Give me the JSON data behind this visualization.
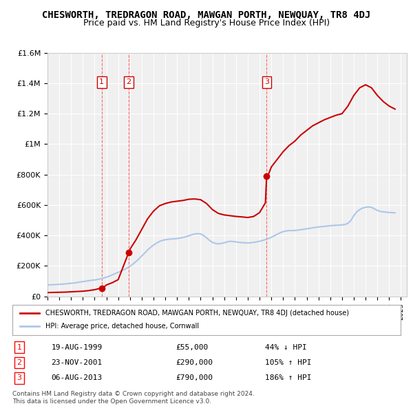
{
  "title": "CHESWORTH, TREDRAGON ROAD, MAWGAN PORTH, NEWQUAY, TR8 4DJ",
  "subtitle": "Price paid vs. HM Land Registry's House Price Index (HPI)",
  "title_fontsize": 10,
  "subtitle_fontsize": 9,
  "ylim": [
    0,
    1600000
  ],
  "yticks": [
    0,
    200000,
    400000,
    600000,
    800000,
    1000000,
    1200000,
    1400000,
    1600000
  ],
  "ytick_labels": [
    "£0",
    "£200K",
    "£400K",
    "£600K",
    "£800K",
    "£1M",
    "£1.2M",
    "£1.4M",
    "£1.6M"
  ],
  "xlim_start": 1995.0,
  "xlim_end": 2025.5,
  "background_color": "#ffffff",
  "plot_bg_color": "#f0f0f0",
  "grid_color": "#ffffff",
  "hpi_color": "#aec6e8",
  "price_color": "#cc0000",
  "sale_marker_color": "#cc0000",
  "sale_label_color": "#cc0000",
  "vline_color": "#ff6666",
  "legend_label_red": "CHESWORTH, TREDRAGON ROAD, MAWGAN PORTH, NEWQUAY, TR8 4DJ (detached house)",
  "legend_label_blue": "HPI: Average price, detached house, Cornwall",
  "footer_line1": "Contains HM Land Registry data © Crown copyright and database right 2024.",
  "footer_line2": "This data is licensed under the Open Government Licence v3.0.",
  "sales": [
    {
      "num": 1,
      "year": 1999.6,
      "price": 55000,
      "date": "19-AUG-1999",
      "price_str": "£55,000",
      "change": "44% ↓ HPI"
    },
    {
      "num": 2,
      "year": 2001.9,
      "price": 290000,
      "date": "23-NOV-2001",
      "price_str": "£290,000",
      "change": "105% ↑ HPI"
    },
    {
      "num": 3,
      "year": 2013.6,
      "price": 790000,
      "date": "06-AUG-2013",
      "price_str": "£790,000",
      "change": "186% ↑ HPI"
    }
  ],
  "hpi_years": [
    1995.0,
    1995.25,
    1995.5,
    1995.75,
    1996.0,
    1996.25,
    1996.5,
    1996.75,
    1997.0,
    1997.25,
    1997.5,
    1997.75,
    1998.0,
    1998.25,
    1998.5,
    1998.75,
    1999.0,
    1999.25,
    1999.5,
    1999.75,
    2000.0,
    2000.25,
    2000.5,
    2000.75,
    2001.0,
    2001.25,
    2001.5,
    2001.75,
    2002.0,
    2002.25,
    2002.5,
    2002.75,
    2003.0,
    2003.25,
    2003.5,
    2003.75,
    2004.0,
    2004.25,
    2004.5,
    2004.75,
    2005.0,
    2005.25,
    2005.5,
    2005.75,
    2006.0,
    2006.25,
    2006.5,
    2006.75,
    2007.0,
    2007.25,
    2007.5,
    2007.75,
    2008.0,
    2008.25,
    2008.5,
    2008.75,
    2009.0,
    2009.25,
    2009.5,
    2009.75,
    2010.0,
    2010.25,
    2010.5,
    2010.75,
    2011.0,
    2011.25,
    2011.5,
    2011.75,
    2012.0,
    2012.25,
    2012.5,
    2012.75,
    2013.0,
    2013.25,
    2013.5,
    2013.75,
    2014.0,
    2014.25,
    2014.5,
    2014.75,
    2015.0,
    2015.25,
    2015.5,
    2015.75,
    2016.0,
    2016.25,
    2016.5,
    2016.75,
    2017.0,
    2017.25,
    2017.5,
    2017.75,
    2018.0,
    2018.25,
    2018.5,
    2018.75,
    2019.0,
    2019.25,
    2019.5,
    2019.75,
    2020.0,
    2020.25,
    2020.5,
    2020.75,
    2021.0,
    2021.25,
    2021.5,
    2021.75,
    2022.0,
    2022.25,
    2022.5,
    2022.75,
    2023.0,
    2023.25,
    2023.5,
    2023.75,
    2024.0,
    2024.25,
    2024.5
  ],
  "hpi_values": [
    75000,
    76000,
    77000,
    78000,
    79000,
    80500,
    82000,
    84000,
    86000,
    88000,
    91000,
    94000,
    97000,
    100000,
    103000,
    106000,
    108000,
    111000,
    115000,
    120000,
    126000,
    133000,
    141000,
    150000,
    158000,
    167000,
    176000,
    186000,
    198000,
    212000,
    228000,
    246000,
    265000,
    285000,
    305000,
    322000,
    337000,
    350000,
    360000,
    368000,
    372000,
    375000,
    377000,
    378000,
    380000,
    383000,
    387000,
    392000,
    398000,
    405000,
    410000,
    412000,
    410000,
    400000,
    385000,
    368000,
    355000,
    348000,
    345000,
    348000,
    352000,
    358000,
    362000,
    360000,
    358000,
    355000,
    353000,
    352000,
    351000,
    352000,
    355000,
    358000,
    362000,
    367000,
    373000,
    380000,
    388000,
    398000,
    408000,
    418000,
    425000,
    430000,
    432000,
    432000,
    433000,
    435000,
    438000,
    441000,
    444000,
    447000,
    450000,
    453000,
    456000,
    458000,
    460000,
    462000,
    464000,
    466000,
    467000,
    468000,
    470000,
    472000,
    480000,
    498000,
    530000,
    555000,
    570000,
    580000,
    585000,
    588000,
    585000,
    575000,
    565000,
    558000,
    555000,
    553000,
    551000,
    550000,
    549000
  ],
  "red_years": [
    1995.0,
    1995.5,
    1996.0,
    1996.5,
    1997.0,
    1997.5,
    1998.0,
    1998.5,
    1999.0,
    1999.6,
    1999.7,
    2000.0,
    2000.5,
    2001.0,
    2001.9,
    2002.0,
    2002.5,
    2003.0,
    2003.5,
    2004.0,
    2004.5,
    2005.0,
    2005.5,
    2006.0,
    2006.5,
    2007.0,
    2007.5,
    2008.0,
    2008.5,
    2009.0,
    2009.5,
    2010.0,
    2010.5,
    2011.0,
    2011.5,
    2012.0,
    2012.5,
    2013.0,
    2013.5,
    2013.6,
    2013.7,
    2014.0,
    2014.5,
    2015.0,
    2015.5,
    2016.0,
    2016.5,
    2017.0,
    2017.5,
    2018.0,
    2018.5,
    2019.0,
    2019.5,
    2020.0,
    2020.5,
    2021.0,
    2021.5,
    2022.0,
    2022.5,
    2023.0,
    2023.5,
    2024.0,
    2024.5
  ],
  "red_values": [
    25000,
    26000,
    27000,
    28000,
    30000,
    32000,
    34000,
    38000,
    44000,
    55000,
    55000,
    75000,
    90000,
    110000,
    290000,
    310000,
    370000,
    440000,
    510000,
    560000,
    595000,
    610000,
    620000,
    625000,
    630000,
    638000,
    640000,
    635000,
    610000,
    570000,
    545000,
    535000,
    530000,
    525000,
    522000,
    518000,
    525000,
    550000,
    615000,
    790000,
    790000,
    850000,
    900000,
    950000,
    990000,
    1020000,
    1060000,
    1090000,
    1120000,
    1140000,
    1160000,
    1175000,
    1190000,
    1200000,
    1250000,
    1320000,
    1370000,
    1390000,
    1370000,
    1320000,
    1280000,
    1250000,
    1230000
  ]
}
